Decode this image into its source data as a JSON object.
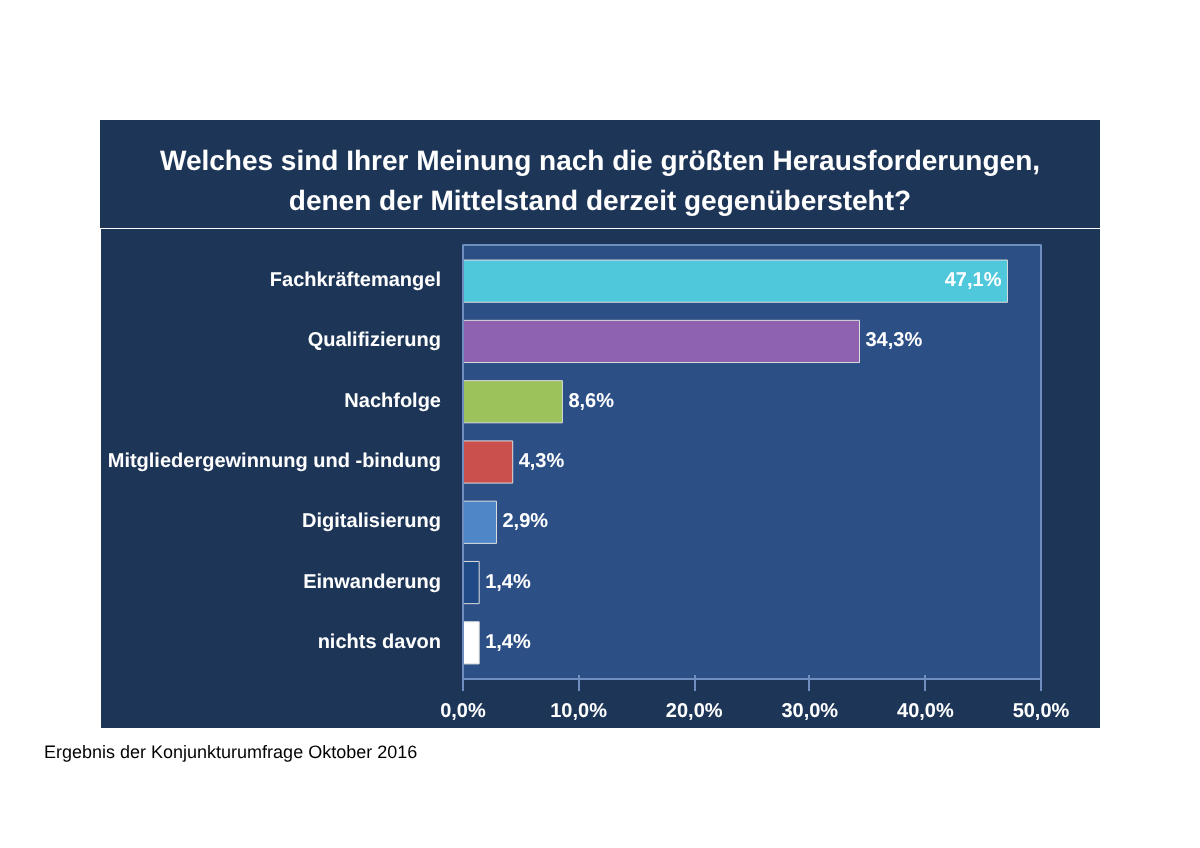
{
  "chart_data": {
    "type": "bar",
    "orientation": "horizontal",
    "title": "Welches sind Ihrer Meinung nach die größten Herausforderungen,\ndenen der Mittelstand derzeit gegenübersteht?",
    "categories": [
      "Fachkräftemangel",
      "Qualifizierung",
      "Nachfolge",
      "Mitgliedergewinnung und -bindung",
      "Digitalisierung",
      "Einwanderung",
      "nichts davon"
    ],
    "values": [
      47.1,
      34.3,
      8.6,
      4.3,
      2.9,
      1.4,
      1.4
    ],
    "value_labels": [
      "47,1%",
      "34,3%",
      "8,6%",
      "4,3%",
      "2,9%",
      "1,4%",
      "1,4%"
    ],
    "colors": [
      "#4fc8dc",
      "#8e62ae",
      "#9cc25c",
      "#c9504d",
      "#4f86c8",
      "#1f4a86",
      "#ffffff"
    ],
    "xlim": [
      0,
      50
    ],
    "xticks": [
      {
        "value": 0,
        "label": "0,0%"
      },
      {
        "value": 10,
        "label": "10,0%"
      },
      {
        "value": 20,
        "label": "20,0%"
      },
      {
        "value": 30,
        "label": "30,0%"
      },
      {
        "value": 40,
        "label": "40,0%"
      },
      {
        "value": 50,
        "label": "50,0%"
      }
    ],
    "grid": false,
    "annotations": [
      "Ergebnis der Konjunkturumfrage Oktober 2016"
    ]
  }
}
